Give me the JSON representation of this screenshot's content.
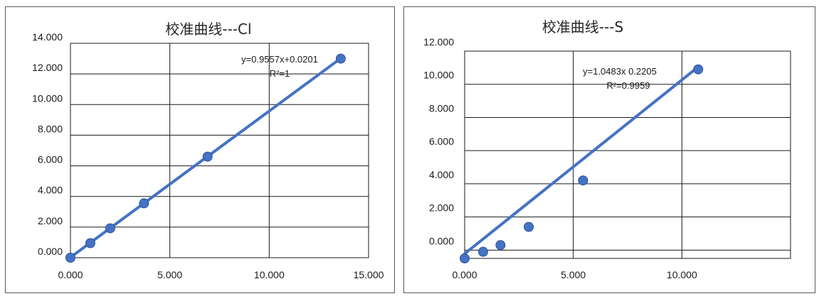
{
  "chart_data": [
    {
      "type": "scatter",
      "title": "校准曲线---Cl",
      "x": [
        0.0,
        1.0,
        2.0,
        3.7,
        6.9,
        13.6
      ],
      "y": [
        0.0,
        0.95,
        1.92,
        3.55,
        6.6,
        13.0
      ],
      "xlim": [
        0,
        15
      ],
      "ylim": [
        0,
        14
      ],
      "x_ticks": [
        "0.000",
        "5.000",
        "10.000",
        "15.000"
      ],
      "y_ticks": [
        "0.000",
        "2.000",
        "4.000",
        "6.000",
        "8.000",
        "10.000",
        "12.000",
        "14.000"
      ],
      "x_tick_values": [
        0,
        5,
        10,
        15
      ],
      "y_tick_values": [
        0,
        2,
        4,
        6,
        8,
        10,
        12,
        14
      ],
      "trendline": {
        "slope": 0.9557,
        "intercept": 0.0201,
        "x_from": 0,
        "x_to": 13.6
      },
      "equation": "y=0.9557x+0.0201",
      "r_squared": "R²=1",
      "grid": true,
      "color": "#4472c4"
    },
    {
      "type": "scatter",
      "title": "校准曲线---S",
      "x": [
        0.0,
        0.85,
        1.65,
        2.95,
        5.45,
        10.75
      ],
      "y": [
        -0.5,
        -0.1,
        0.3,
        1.4,
        4.2,
        10.9
      ],
      "xlim": [
        0,
        15
      ],
      "ylim": [
        -0.5,
        12
      ],
      "x_ticks": [
        "0.000",
        "5.000",
        "10.000"
      ],
      "y_ticks": [
        "0.000",
        "2.000",
        "4.000",
        "6.000",
        "8.000",
        "10.000",
        "12.000"
      ],
      "x_tick_values": [
        0,
        5,
        10
      ],
      "y_tick_values": [
        0,
        2,
        4,
        6,
        8,
        10,
        12
      ],
      "trendline": {
        "slope": 1.0483,
        "intercept": -0.2205,
        "x_from": 0,
        "x_to": 10.75
      },
      "equation": "y=1.0483x 0.2205",
      "r_squared": "R²=0.9959",
      "grid": true,
      "color": "#4472c4"
    }
  ]
}
